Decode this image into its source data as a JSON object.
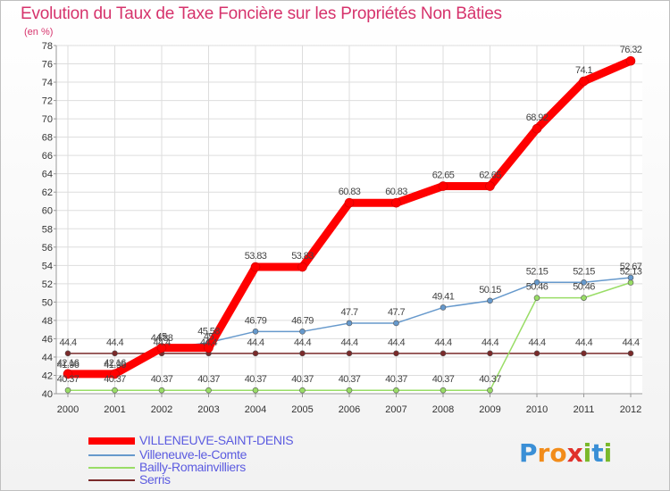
{
  "title": "Evolution du Taux de Taxe Foncière sur les Propriétés Non Bâties",
  "subtitle": "(en %)",
  "logo": {
    "text": "Proxiti",
    "letters": [
      "P",
      "r",
      "o",
      "x",
      "i",
      "t",
      "i"
    ],
    "colors": [
      "#3a8fd6",
      "#f28c1a",
      "#f28c1a",
      "#e0312b",
      "#7ab82a",
      "#3a8fd6",
      "#7ab82a"
    ]
  },
  "chart_data": {
    "type": "line",
    "title": "Evolution du Taux de Taxe Foncière sur les Propriétés Non Bâties",
    "ylabel": "(en %)",
    "xlabel": "",
    "x": [
      "2000",
      "2001",
      "2002",
      "2003",
      "2004",
      "2005",
      "2006",
      "2007",
      "2008",
      "2009",
      "2010",
      "2011",
      "2012"
    ],
    "ylim": [
      40,
      78
    ],
    "yticks": [
      "40",
      "42",
      "44",
      "46",
      "48",
      "50",
      "52",
      "54",
      "56",
      "58",
      "60",
      "62",
      "64",
      "66",
      "68",
      "70",
      "72",
      "74",
      "76",
      "78"
    ],
    "grid": true,
    "legend_position": "bottom-left",
    "series": [
      {
        "name": "VILLENEUVE-SAINT-DENIS",
        "color": "#ff0000",
        "values": [
          42.16,
          42.16,
          45.0,
          45.0,
          53.83,
          53.83,
          60.83,
          60.83,
          62.65,
          62.65,
          68.92,
          74.1,
          76.32
        ],
        "labels": [
          "42.16",
          "42.16",
          "45",
          "45",
          "53.83",
          "53.83",
          "60.83",
          "60.83",
          "62.65",
          "62.65",
          "68.92",
          "74.1",
          "76.32"
        ]
      },
      {
        "name": "Villeneuve-le-Comte",
        "color": "#6699cc",
        "values": [
          41.96,
          41.96,
          44.88,
          45.58,
          46.79,
          46.79,
          47.7,
          47.7,
          49.41,
          50.15,
          52.15,
          52.15,
          52.67
        ],
        "labels": [
          "41.96",
          "41.96",
          "44.88",
          "45.58",
          "46.79",
          "46.79",
          "47.7",
          "47.7",
          "49.41",
          "50.15",
          "52.15",
          "52.15",
          "52.67"
        ]
      },
      {
        "name": "Bailly-Romainvilliers",
        "color": "#99dd66",
        "values": [
          40.37,
          40.37,
          40.37,
          40.37,
          40.37,
          40.37,
          40.37,
          40.37,
          40.37,
          40.37,
          50.46,
          50.46,
          52.13
        ],
        "labels": [
          "40.37",
          "40.37",
          "40.37",
          "40.37",
          "40.37",
          "40.37",
          "40.37",
          "40.37",
          "40.37",
          "40.37",
          "50.46",
          "50.46",
          "52.13"
        ]
      },
      {
        "name": "Serris",
        "color": "#7a2a2a",
        "values": [
          44.4,
          44.4,
          44.4,
          44.4,
          44.4,
          44.4,
          44.4,
          44.4,
          44.4,
          44.4,
          44.4,
          44.4,
          44.4
        ],
        "labels": [
          "44.4",
          "44.4",
          "44.4",
          "44.4",
          "44.4",
          "44.4",
          "44.4",
          "44.4",
          "44.4",
          "44.4",
          "44.4",
          "44.4",
          "44.4"
        ]
      }
    ]
  }
}
